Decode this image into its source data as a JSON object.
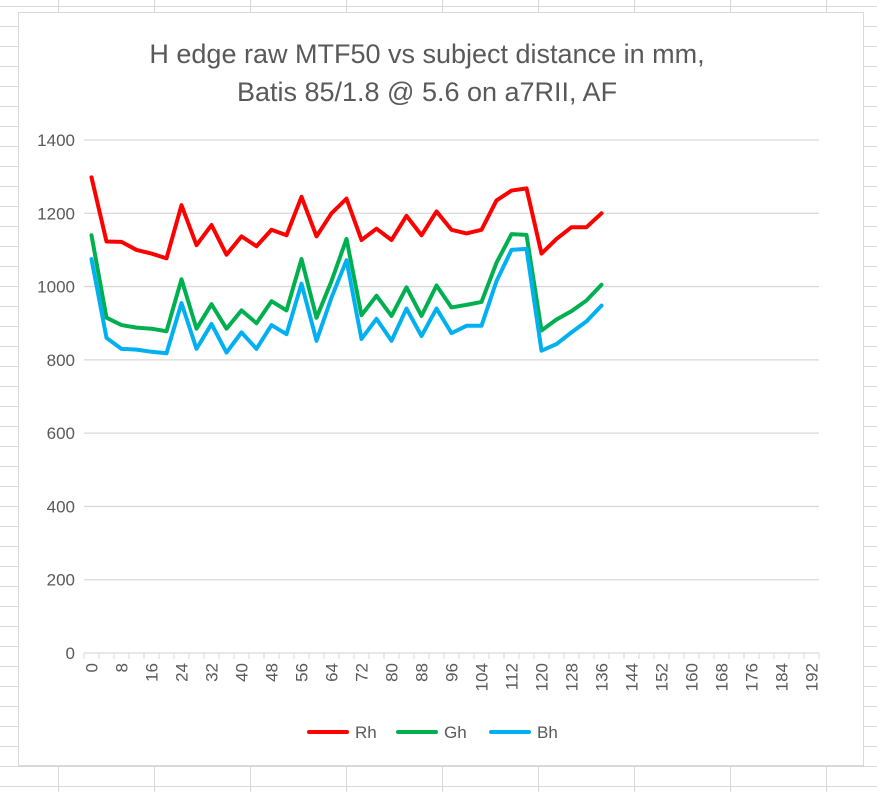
{
  "chart_data": {
    "type": "line",
    "title": [
      "H edge raw MTF50 vs subject distance in mm,",
      "Batis 85/1.8 @ 5.6 on a7RII, AF"
    ],
    "xlabel": "",
    "ylabel": "",
    "ylim": [
      0,
      1400
    ],
    "yticks": [
      "0",
      "200",
      "400",
      "600",
      "800",
      "1000",
      "1200",
      "1400"
    ],
    "xticks": [
      "0",
      "8",
      "16",
      "24",
      "32",
      "40",
      "48",
      "56",
      "64",
      "72",
      "80",
      "88",
      "96",
      "104",
      "112",
      "120",
      "128",
      "136",
      "144",
      "152",
      "160",
      "168",
      "176",
      "184",
      "192"
    ],
    "x_points": 49,
    "x_step": 4,
    "grid": "horizontal",
    "legend": "bottom",
    "series": [
      {
        "name": "Rh",
        "color": "#ff0000",
        "values": [
          1298,
          1123,
          1122,
          1100,
          1090,
          1077,
          1222,
          1113,
          1168,
          1087,
          1137,
          1110,
          1155,
          1140,
          1245,
          1137,
          1200,
          1240,
          1127,
          1158,
          1127,
          1193,
          1140,
          1205,
          1155,
          1145,
          1155,
          1235,
          1262,
          1268,
          1090,
          1130,
          1162,
          1162,
          1200
        ]
      },
      {
        "name": "Gh",
        "color": "#00b050",
        "values": [
          1140,
          915,
          895,
          888,
          885,
          878,
          1020,
          885,
          952,
          885,
          935,
          900,
          960,
          935,
          1075,
          915,
          1015,
          1130,
          922,
          975,
          920,
          998,
          920,
          1003,
          943,
          950,
          958,
          1065,
          1143,
          1141,
          880,
          910,
          933,
          962,
          1005
        ]
      },
      {
        "name": "Bh",
        "color": "#00b0f0",
        "values": [
          1075,
          860,
          830,
          828,
          822,
          818,
          955,
          830,
          898,
          820,
          875,
          830,
          895,
          870,
          1008,
          852,
          970,
          1072,
          857,
          912,
          852,
          940,
          865,
          940,
          873,
          893,
          893,
          1015,
          1100,
          1103,
          825,
          843,
          875,
          905,
          948
        ]
      }
    ]
  }
}
